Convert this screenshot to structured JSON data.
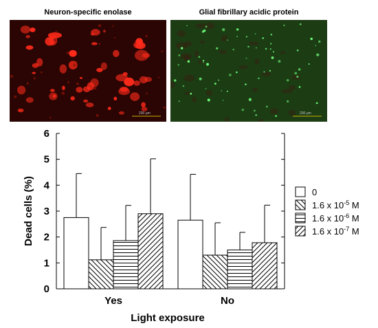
{
  "panels": [
    {
      "title": "Neuron-specific enolase",
      "scale_label": "200 μm",
      "background": "#2a0503",
      "stain_color": "#ff2a1a",
      "scale_color": "#c8b400"
    },
    {
      "title": "Glial fibrillary acidic protein",
      "scale_label": "200 μm",
      "background": "#1c3c14",
      "stain_color": "#6cff7a",
      "scale_color": "#c8b400"
    }
  ],
  "chart_data": {
    "type": "bar",
    "categories": [
      "Yes",
      "No"
    ],
    "xlabel": "Light exposure",
    "ylabel": "Dead cells (%)",
    "ylim": [
      0,
      6
    ],
    "yticks": [
      "0",
      "1",
      "2",
      "3",
      "4",
      "5",
      "6"
    ],
    "series": [
      {
        "name": "0",
        "values": [
          2.75,
          2.65
        ],
        "errors": [
          1.7,
          1.77
        ],
        "pattern": "none"
      },
      {
        "name": "1.6 x 10-5 M",
        "base": "1.6 x 10",
        "exp": "-5",
        "unit": " M",
        "values": [
          1.12,
          1.3
        ],
        "errors": [
          1.25,
          1.25
        ],
        "pattern": "diag-down"
      },
      {
        "name": "1.6 x 10-6 M",
        "base": "1.6 x 10",
        "exp": "-6",
        "unit": " M",
        "values": [
          1.86,
          1.5
        ],
        "errors": [
          1.36,
          0.68
        ],
        "pattern": "horizontal"
      },
      {
        "name": "1.6 x 10-7 M",
        "base": "1.6 x 10",
        "exp": "-7",
        "unit": " M",
        "values": [
          2.9,
          1.78
        ],
        "errors": [
          2.12,
          1.45
        ],
        "pattern": "diag-up"
      }
    ],
    "grid": false,
    "legend_position": "right"
  }
}
